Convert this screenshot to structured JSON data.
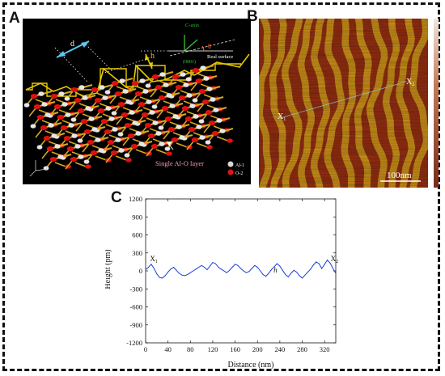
{
  "panels": {
    "a_letter": "A",
    "b_letter": "B",
    "c_letter": "C"
  },
  "panel_a": {
    "d_label": "d",
    "h_label": "h",
    "c_axis_label": "C-axis",
    "theta_label": "θ",
    "plane_label": "(0001)",
    "real_surface_label": "Real surface",
    "layer_label": "Single Al-O layer",
    "legend": [
      {
        "label": "Al-1",
        "color": "#d8d8d8"
      },
      {
        "label": "O-2",
        "color": "#e01414"
      }
    ],
    "colors": {
      "al": "#e6e6e6",
      "o": "#e01010",
      "bond": "#d4a820",
      "outline": "#e6c800",
      "green": "#35c235",
      "cyan": "#5bc8f0"
    }
  },
  "panel_b": {
    "x1_label": "X",
    "x1_sub": "1",
    "x2_label": "X",
    "x2_sub": "2",
    "scalebar_label": "100nm",
    "colors": {
      "dark": "#9a3012",
      "light": "#d8a21c"
    }
  },
  "chart_data": {
    "type": "line",
    "xlabel": "Distance (nm)",
    "ylabel": "Height (pm)",
    "xlim": [
      0,
      340
    ],
    "ylim": [
      -1200,
      1200
    ],
    "xticks": [
      0,
      40,
      80,
      120,
      160,
      200,
      240,
      280,
      320
    ],
    "yticks": [
      1200,
      900,
      600,
      300,
      0,
      -300,
      -600,
      -900,
      -1200
    ],
    "grid": false,
    "line_color": "#1a3fd6",
    "annotations": [
      {
        "text": "X",
        "sub": "1",
        "x": 2,
        "y": 150
      },
      {
        "text": "X",
        "sub": "2",
        "x": 325,
        "y": 150
      },
      {
        "text": "h",
        "x": 223,
        "y": -40
      }
    ],
    "x": [
      0,
      5,
      10,
      15,
      20,
      25,
      30,
      35,
      40,
      45,
      50,
      55,
      60,
      65,
      70,
      75,
      80,
      85,
      90,
      95,
      100,
      105,
      110,
      115,
      120,
      125,
      130,
      135,
      140,
      145,
      150,
      155,
      160,
      165,
      170,
      175,
      180,
      185,
      190,
      195,
      200,
      205,
      210,
      215,
      220,
      225,
      230,
      235,
      240,
      245,
      250,
      255,
      260,
      265,
      270,
      275,
      280,
      285,
      290,
      295,
      300,
      305,
      310,
      315,
      320,
      325,
      330,
      335,
      340
    ],
    "y": [
      20,
      60,
      110,
      40,
      -50,
      -110,
      -120,
      -80,
      -20,
      30,
      60,
      10,
      -40,
      -70,
      -80,
      -60,
      -30,
      0,
      30,
      60,
      90,
      60,
      20,
      80,
      140,
      120,
      60,
      30,
      0,
      -30,
      10,
      60,
      110,
      90,
      40,
      0,
      -30,
      -10,
      40,
      90,
      60,
      0,
      -60,
      -90,
      -40,
      20,
      70,
      120,
      80,
      10,
      -60,
      -100,
      -40,
      10,
      -20,
      -80,
      -120,
      -70,
      -20,
      30,
      100,
      150,
      120,
      40,
      110,
      180,
      130,
      40,
      -40
    ]
  }
}
